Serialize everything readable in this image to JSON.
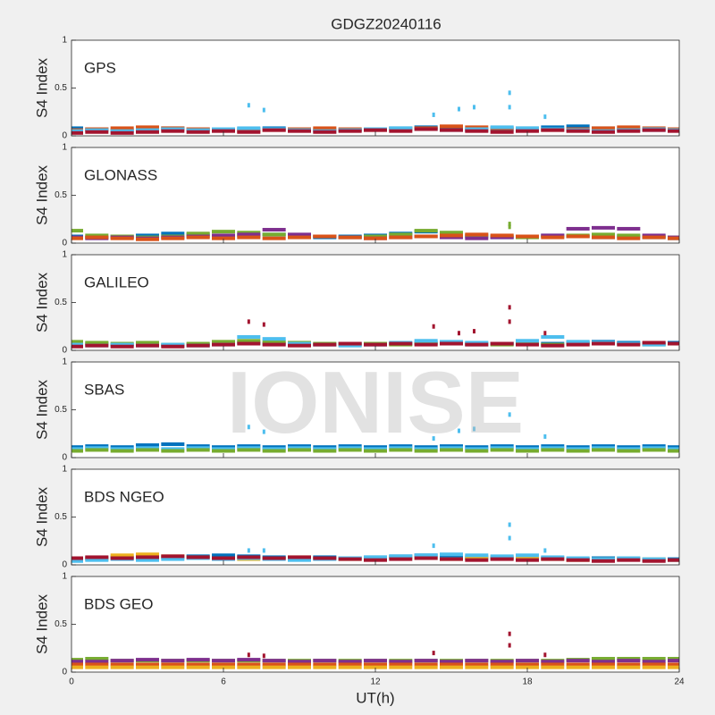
{
  "title": "GDGZ20240116",
  "xlabel": "UT(h)",
  "watermark": "IONISE",
  "chart_data": [
    {
      "type": "scatter",
      "label": "GPS",
      "ylabel": "S4 Index",
      "xlim": [
        0,
        24
      ],
      "xticks": [
        0,
        6,
        12,
        18,
        24
      ],
      "ylim": [
        0,
        1
      ],
      "yticks": [
        0,
        0.5,
        1
      ],
      "x": [
        0,
        1,
        2,
        3,
        4,
        5,
        6,
        7,
        8,
        9,
        10,
        11,
        12,
        13,
        14,
        15,
        16,
        17,
        18,
        19,
        20,
        21,
        22,
        23,
        24
      ],
      "series": [
        {
          "color": "#0072BD",
          "values": [
            0.08,
            0.07,
            0.06,
            0.07,
            0.08,
            0.07,
            0.06,
            0.07,
            0.08,
            0.07,
            0.06,
            0.06,
            0.07,
            0.08,
            0.09,
            0.07,
            0.06,
            0.07,
            0.08,
            0.09,
            0.1,
            0.08,
            0.07,
            0.06,
            0.07
          ]
        },
        {
          "color": "#D95319",
          "values": [
            0.06,
            0.07,
            0.08,
            0.09,
            0.08,
            0.07,
            0.06,
            0.05,
            0.06,
            0.07,
            0.08,
            0.07,
            0.06,
            0.07,
            0.08,
            0.1,
            0.09,
            0.08,
            0.07,
            0.06,
            0.07,
            0.08,
            0.09,
            0.08,
            0.07
          ]
        },
        {
          "color": "#4DBEEE",
          "values": [
            0.05,
            0.06,
            0.05,
            0.06,
            0.07,
            0.06,
            0.07,
            0.08,
            0.07,
            0.06,
            0.05,
            0.06,
            0.07,
            0.08,
            0.07,
            0.06,
            0.07,
            0.09,
            0.08,
            0.07,
            0.06,
            0.05,
            0.06,
            0.07,
            0.06
          ]
        },
        {
          "color": "#A2142F",
          "values": [
            0.03,
            0.04,
            0.03,
            0.04,
            0.05,
            0.04,
            0.05,
            0.04,
            0.06,
            0.05,
            0.04,
            0.05,
            0.06,
            0.05,
            0.07,
            0.06,
            0.05,
            0.04,
            0.05,
            0.06,
            0.05,
            0.04,
            0.05,
            0.06,
            0.05
          ]
        },
        {
          "color": "#4DBEEE",
          "x": [
            7,
            7.6,
            14.3,
            15.3,
            15.9,
            17.3,
            17.3,
            18.7
          ],
          "values": [
            0.32,
            0.27,
            0.22,
            0.28,
            0.3,
            0.45,
            0.3,
            0.2
          ]
        }
      ]
    },
    {
      "type": "scatter",
      "label": "GLONASS",
      "ylabel": "S4 Index",
      "xlim": [
        0,
        24
      ],
      "xticks": [
        0,
        6,
        12,
        18,
        24
      ],
      "ylim": [
        0,
        1
      ],
      "yticks": [
        0,
        0.5,
        1
      ],
      "x": [
        0,
        1,
        2,
        3,
        4,
        5,
        6,
        7,
        8,
        9,
        10,
        11,
        12,
        13,
        14,
        15,
        16,
        17,
        18,
        19,
        20,
        21,
        22,
        23,
        24
      ],
      "series": [
        {
          "color": "#0072BD",
          "values": [
            0.07,
            0.06,
            0.07,
            0.08,
            0.1,
            0.09,
            0.07,
            0.08,
            0.09,
            0.07,
            0.06,
            0.07,
            0.08,
            0.1,
            0.12,
            0.09,
            0.07,
            0.06,
            0.07,
            0.08,
            0.07,
            0.06,
            0.07,
            0.06,
            0.05
          ]
        },
        {
          "color": "#77AC30",
          "values": [
            0.13,
            0.08,
            0.07,
            0.06,
            0.07,
            0.1,
            0.12,
            0.11,
            0.09,
            0.08,
            0.07,
            0.06,
            0.07,
            0.09,
            0.13,
            0.11,
            0.08,
            0.07,
            0.06,
            0.07,
            0.08,
            0.09,
            0.08,
            0.07,
            0.06
          ]
        },
        {
          "color": "#7E2F8E",
          "values": [
            0.06,
            0.05,
            0.06,
            0.05,
            0.06,
            0.07,
            0.08,
            0.09,
            0.14,
            0.09,
            0.07,
            0.06,
            0.05,
            0.06,
            0.07,
            0.06,
            0.05,
            0.06,
            0.07,
            0.08,
            0.15,
            0.16,
            0.15,
            0.08,
            0.06
          ]
        },
        {
          "color": "#D95319",
          "values": [
            0.05,
            0.06,
            0.05,
            0.04,
            0.05,
            0.06,
            0.05,
            0.06,
            0.05,
            0.06,
            0.07,
            0.06,
            0.05,
            0.06,
            0.07,
            0.08,
            0.09,
            0.08,
            0.07,
            0.06,
            0.07,
            0.06,
            0.05,
            0.06,
            0.05
          ]
        },
        {
          "color": "#77AC30",
          "x": [
            17.3,
            17.3
          ],
          "values": [
            0.2,
            0.17
          ]
        }
      ]
    },
    {
      "type": "scatter",
      "label": "GALILEO",
      "ylabel": "S4 Index",
      "xlim": [
        0,
        24
      ],
      "xticks": [
        0,
        6,
        12,
        18,
        24
      ],
      "ylim": [
        0,
        1
      ],
      "yticks": [
        0,
        0.5,
        1
      ],
      "x": [
        0,
        1,
        2,
        3,
        4,
        5,
        6,
        7,
        8,
        9,
        10,
        11,
        12,
        13,
        14,
        15,
        16,
        17,
        18,
        19,
        20,
        21,
        22,
        23,
        24
      ],
      "series": [
        {
          "color": "#0072BD",
          "values": [
            0.08,
            0.07,
            0.06,
            0.06,
            0.05,
            0.06,
            0.07,
            0.08,
            0.07,
            0.06,
            0.06,
            0.07,
            0.06,
            0.07,
            0.08,
            0.07,
            0.06,
            0.07,
            0.08,
            0.07,
            0.08,
            0.09,
            0.08,
            0.07,
            0.08
          ]
        },
        {
          "color": "#77AC30",
          "values": [
            0.09,
            0.08,
            0.07,
            0.08,
            0.06,
            0.07,
            0.09,
            0.1,
            0.09,
            0.08,
            0.07,
            0.06,
            0.07,
            0.06,
            0.07,
            0.08,
            0.07,
            0.06,
            0.07,
            0.06,
            0.07,
            0.08,
            0.07,
            0.06,
            0.07
          ]
        },
        {
          "color": "#4DBEEE",
          "values": [
            0.06,
            0.05,
            0.06,
            0.05,
            0.06,
            0.05,
            0.06,
            0.14,
            0.12,
            0.07,
            0.06,
            0.05,
            0.06,
            0.08,
            0.1,
            0.09,
            0.08,
            0.07,
            0.1,
            0.14,
            0.09,
            0.08,
            0.07,
            0.06,
            0.07
          ]
        },
        {
          "color": "#A2142F",
          "values": [
            0.04,
            0.05,
            0.04,
            0.05,
            0.04,
            0.05,
            0.06,
            0.07,
            0.06,
            0.05,
            0.06,
            0.07,
            0.06,
            0.07,
            0.06,
            0.07,
            0.06,
            0.07,
            0.06,
            0.05,
            0.06,
            0.07,
            0.06,
            0.08,
            0.07
          ]
        },
        {
          "color": "#A2142F",
          "x": [
            7,
            7.6,
            14.3,
            15.3,
            15.9,
            17.3,
            17.3,
            18.7
          ],
          "values": [
            0.3,
            0.27,
            0.25,
            0.18,
            0.2,
            0.45,
            0.3,
            0.18
          ]
        }
      ]
    },
    {
      "type": "scatter",
      "label": "SBAS",
      "ylabel": "S4 Index",
      "xlim": [
        0,
        24
      ],
      "xticks": [
        0,
        6,
        12,
        18,
        24
      ],
      "ylim": [
        0,
        1
      ],
      "yticks": [
        0,
        0.5,
        1
      ],
      "x": [
        0,
        1,
        2,
        3,
        4,
        5,
        6,
        7,
        8,
        9,
        10,
        11,
        12,
        13,
        14,
        15,
        16,
        17,
        18,
        19,
        20,
        21,
        22,
        23,
        24
      ],
      "series": [
        {
          "color": "#0072BD",
          "values": [
            0.11,
            0.12,
            0.11,
            0.13,
            0.14,
            0.12,
            0.11,
            0.12,
            0.11,
            0.12,
            0.11,
            0.12,
            0.11,
            0.12,
            0.11,
            0.12,
            0.11,
            0.12,
            0.11,
            0.12,
            0.11,
            0.12,
            0.11,
            0.12,
            0.11
          ]
        },
        {
          "color": "#4DBEEE",
          "values": [
            0.09,
            0.1,
            0.09,
            0.1,
            0.09,
            0.1,
            0.09,
            0.1,
            0.09,
            0.1,
            0.09,
            0.1,
            0.09,
            0.1,
            0.09,
            0.1,
            0.09,
            0.1,
            0.09,
            0.1,
            0.09,
            0.1,
            0.09,
            0.1,
            0.09
          ]
        },
        {
          "color": "#77AC30",
          "values": [
            0.07,
            0.08,
            0.07,
            0.08,
            0.07,
            0.08,
            0.07,
            0.08,
            0.07,
            0.08,
            0.07,
            0.08,
            0.07,
            0.08,
            0.07,
            0.08,
            0.07,
            0.08,
            0.07,
            0.08,
            0.07,
            0.08,
            0.07,
            0.08,
            0.07
          ]
        },
        {
          "color": "#4DBEEE",
          "x": [
            7,
            7.6,
            14.3,
            15.3,
            15.9,
            17.3,
            18.7
          ],
          "values": [
            0.32,
            0.27,
            0.2,
            0.28,
            0.3,
            0.45,
            0.22
          ]
        }
      ]
    },
    {
      "type": "scatter",
      "label": "BDS NGEO",
      "ylabel": "S4 Index",
      "xlim": [
        0,
        24
      ],
      "xticks": [
        0,
        6,
        12,
        18,
        24
      ],
      "ylim": [
        0,
        1
      ],
      "yticks": [
        0,
        0.5,
        1
      ],
      "x": [
        0,
        1,
        2,
        3,
        4,
        5,
        6,
        7,
        8,
        9,
        10,
        11,
        12,
        13,
        14,
        15,
        16,
        17,
        18,
        19,
        20,
        21,
        22,
        23,
        24
      ],
      "series": [
        {
          "color": "#0072BD",
          "values": [
            0.06,
            0.07,
            0.08,
            0.09,
            0.08,
            0.09,
            0.1,
            0.09,
            0.08,
            0.07,
            0.08,
            0.07,
            0.08,
            0.09,
            0.1,
            0.09,
            0.08,
            0.07,
            0.08,
            0.07,
            0.06,
            0.07,
            0.06,
            0.05,
            0.06
          ]
        },
        {
          "color": "#EDB120",
          "values": [
            0.05,
            0.06,
            0.1,
            0.11,
            0.09,
            0.08,
            0.07,
            0.06,
            0.07,
            0.08,
            0.07,
            0.06,
            0.07,
            0.08,
            0.07,
            0.06,
            0.07,
            0.08,
            0.07,
            0.06,
            0.05,
            0.06,
            0.07,
            0.06,
            0.05
          ]
        },
        {
          "color": "#4DBEEE",
          "values": [
            0.04,
            0.05,
            0.06,
            0.05,
            0.06,
            0.07,
            0.06,
            0.07,
            0.06,
            0.05,
            0.06,
            0.07,
            0.08,
            0.09,
            0.1,
            0.11,
            0.1,
            0.09,
            0.1,
            0.08,
            0.07,
            0.06,
            0.07,
            0.06,
            0.05
          ]
        },
        {
          "color": "#A2142F",
          "values": [
            0.07,
            0.08,
            0.07,
            0.08,
            0.09,
            0.08,
            0.07,
            0.08,
            0.07,
            0.08,
            0.07,
            0.06,
            0.05,
            0.06,
            0.07,
            0.06,
            0.05,
            0.06,
            0.05,
            0.06,
            0.05,
            0.04,
            0.05,
            0.04,
            0.05
          ]
        },
        {
          "color": "#4DBEEE",
          "x": [
            7,
            7.6,
            14.3,
            17.3,
            17.3,
            18.7
          ],
          "values": [
            0.15,
            0.15,
            0.2,
            0.42,
            0.28,
            0.15
          ]
        }
      ]
    },
    {
      "type": "scatter",
      "label": "BDS GEO",
      "ylabel": "S4 Index",
      "xlim": [
        0,
        24
      ],
      "xticks": [
        0,
        6,
        12,
        18,
        24
      ],
      "ylim": [
        0,
        1
      ],
      "yticks": [
        0,
        0.5,
        1
      ],
      "x": [
        0,
        1,
        2,
        3,
        4,
        5,
        6,
        7,
        8,
        9,
        10,
        11,
        12,
        13,
        14,
        15,
        16,
        17,
        18,
        19,
        20,
        21,
        22,
        23,
        24
      ],
      "series": [
        {
          "color": "#77AC30",
          "values": [
            0.13,
            0.14,
            0.12,
            0.12,
            0.12,
            0.12,
            0.12,
            0.12,
            0.12,
            0.12,
            0.12,
            0.12,
            0.12,
            0.12,
            0.12,
            0.12,
            0.12,
            0.12,
            0.12,
            0.12,
            0.13,
            0.14,
            0.14,
            0.14,
            0.14
          ]
        },
        {
          "color": "#7E2F8E",
          "values": [
            0.11,
            0.11,
            0.12,
            0.13,
            0.12,
            0.13,
            0.12,
            0.13,
            0.12,
            0.11,
            0.12,
            0.11,
            0.12,
            0.11,
            0.12,
            0.11,
            0.12,
            0.11,
            0.12,
            0.11,
            0.12,
            0.11,
            0.12,
            0.11,
            0.12
          ]
        },
        {
          "color": "#D95319",
          "values": [
            0.08,
            0.08,
            0.08,
            0.08,
            0.08,
            0.08,
            0.08,
            0.08,
            0.08,
            0.08,
            0.08,
            0.08,
            0.08,
            0.08,
            0.08,
            0.08,
            0.08,
            0.08,
            0.08,
            0.08,
            0.08,
            0.08,
            0.08,
            0.08,
            0.08
          ]
        },
        {
          "color": "#EDB120",
          "values": [
            0.05,
            0.05,
            0.05,
            0.05,
            0.05,
            0.05,
            0.05,
            0.05,
            0.05,
            0.05,
            0.05,
            0.05,
            0.05,
            0.05,
            0.05,
            0.05,
            0.05,
            0.05,
            0.05,
            0.05,
            0.05,
            0.05,
            0.05,
            0.05,
            0.05
          ]
        },
        {
          "color": "#A2142F",
          "x": [
            7,
            7.6,
            14.3,
            17.3,
            17.3,
            18.7
          ],
          "values": [
            0.18,
            0.17,
            0.2,
            0.4,
            0.28,
            0.18
          ]
        }
      ]
    }
  ]
}
